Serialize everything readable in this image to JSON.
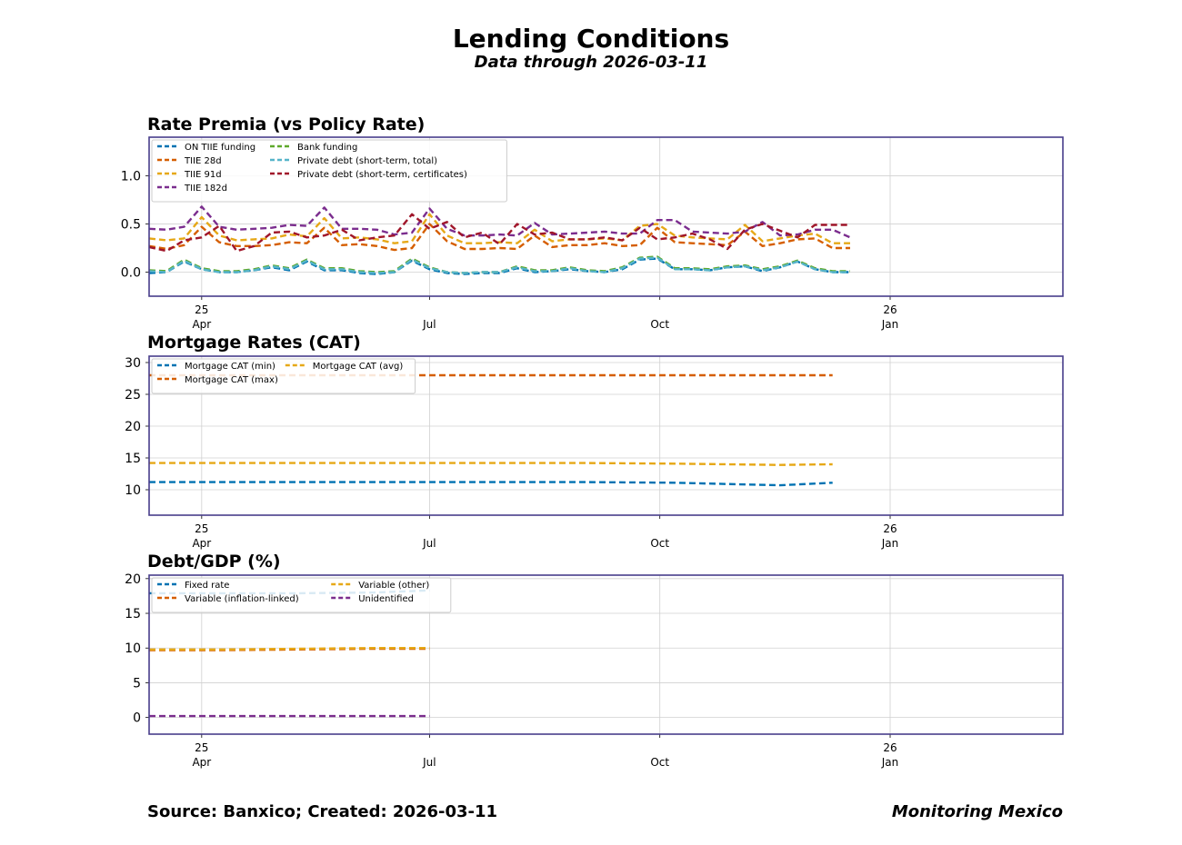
{
  "header": {
    "title": "Lending Conditions",
    "subtitle": "Data through 2026-03-11"
  },
  "footer": {
    "source": "Source: Banxico; Created: 2026-03-11",
    "brand": "Monitoring Mexico"
  },
  "colors": {
    "frame": "#483d8b",
    "grid": "#d0d0d0"
  },
  "x_ticks": [
    {
      "date": "2025-04-01",
      "line1": "25",
      "line2": "Apr"
    },
    {
      "date": "2025-07-01",
      "line1": "",
      "line2": "Jul"
    },
    {
      "date": "2025-10-01",
      "line1": "",
      "line2": "Oct"
    },
    {
      "date": "2026-01-01",
      "line1": "26",
      "line2": "Jan"
    }
  ],
  "x_range": [
    "2025-03-11",
    "2026-03-11"
  ],
  "chart_data": [
    {
      "type": "line",
      "title": "Rate Premia (vs Policy Rate)",
      "ylim": [
        -0.25,
        1.4
      ],
      "yticks": [
        0.0,
        0.5,
        1.0
      ],
      "ytick_labels": [
        "0.0",
        "0.5",
        "1.0"
      ],
      "grid": true,
      "legend": "top-left",
      "legend_columns": 2,
      "x": [
        "2025-03-11",
        "2025-03-18",
        "2025-03-25",
        "2025-04-01",
        "2025-04-08",
        "2025-04-15",
        "2025-04-22",
        "2025-04-29",
        "2025-05-06",
        "2025-05-13",
        "2025-05-20",
        "2025-05-27",
        "2025-06-03",
        "2025-06-10",
        "2025-06-17",
        "2025-06-24",
        "2025-07-01",
        "2025-07-08",
        "2025-07-15",
        "2025-07-22",
        "2025-07-29",
        "2025-08-05",
        "2025-08-12",
        "2025-08-19",
        "2025-08-26",
        "2025-09-02",
        "2025-09-09",
        "2025-09-16",
        "2025-09-23",
        "2025-09-30",
        "2025-10-07",
        "2025-10-14",
        "2025-10-21",
        "2025-10-28",
        "2025-11-04",
        "2025-11-11",
        "2025-11-18",
        "2025-11-25",
        "2025-12-02",
        "2025-12-09",
        "2025-12-16"
      ],
      "series": [
        {
          "name": "ON TIIE funding",
          "color": "#0072b2",
          "values": [
            -0.01,
            0.0,
            0.11,
            0.03,
            0.0,
            0.0,
            0.02,
            0.05,
            0.02,
            0.11,
            0.02,
            0.02,
            -0.01,
            -0.02,
            0.0,
            0.12,
            0.03,
            -0.01,
            -0.02,
            -0.01,
            -0.01,
            0.04,
            0.0,
            0.01,
            0.03,
            0.01,
            0.0,
            0.03,
            0.13,
            0.14,
            0.03,
            0.03,
            0.02,
            0.05,
            0.06,
            0.01,
            0.05,
            0.11,
            0.03,
            0.0,
            0.0
          ]
        },
        {
          "name": "TIIE 28d",
          "color": "#d55e00",
          "values": [
            0.27,
            0.24,
            0.28,
            0.47,
            0.31,
            0.27,
            0.27,
            0.28,
            0.31,
            0.3,
            0.46,
            0.28,
            0.29,
            0.27,
            0.23,
            0.25,
            0.5,
            0.32,
            0.24,
            0.24,
            0.25,
            0.24,
            0.38,
            0.26,
            0.28,
            0.28,
            0.3,
            0.27,
            0.28,
            0.46,
            0.31,
            0.3,
            0.29,
            0.28,
            0.42,
            0.27,
            0.3,
            0.34,
            0.35,
            0.25,
            0.25
          ]
        },
        {
          "name": "TIIE 91d",
          "color": "#e6a817",
          "values": [
            0.35,
            0.33,
            0.35,
            0.57,
            0.38,
            0.33,
            0.34,
            0.35,
            0.39,
            0.37,
            0.56,
            0.35,
            0.36,
            0.34,
            0.3,
            0.32,
            0.6,
            0.38,
            0.3,
            0.3,
            0.31,
            0.3,
            0.44,
            0.32,
            0.34,
            0.34,
            0.35,
            0.33,
            0.48,
            0.5,
            0.38,
            0.36,
            0.35,
            0.34,
            0.49,
            0.32,
            0.35,
            0.38,
            0.4,
            0.3,
            0.3
          ]
        },
        {
          "name": "TIIE 182d",
          "color": "#7b2d8e",
          "values": [
            0.45,
            0.44,
            0.47,
            0.68,
            0.47,
            0.44,
            0.45,
            0.46,
            0.49,
            0.48,
            0.67,
            0.45,
            0.45,
            0.44,
            0.39,
            0.41,
            0.66,
            0.45,
            0.38,
            0.38,
            0.39,
            0.38,
            0.51,
            0.39,
            0.4,
            0.41,
            0.42,
            0.4,
            0.4,
            0.54,
            0.54,
            0.42,
            0.41,
            0.4,
            0.42,
            0.52,
            0.38,
            0.39,
            0.44,
            0.44,
            0.36
          ]
        },
        {
          "name": "Bank funding",
          "color": "#5ea82b",
          "values": [
            0.02,
            0.01,
            0.13,
            0.04,
            0.01,
            0.01,
            0.03,
            0.07,
            0.04,
            0.13,
            0.04,
            0.04,
            0.01,
            0.0,
            0.01,
            0.14,
            0.05,
            0.0,
            -0.01,
            0.0,
            0.0,
            0.06,
            0.02,
            0.02,
            0.05,
            0.02,
            0.01,
            0.05,
            0.15,
            0.16,
            0.04,
            0.04,
            0.03,
            0.06,
            0.07,
            0.03,
            0.06,
            0.12,
            0.04,
            0.01,
            0.01
          ]
        },
        {
          "name": "Private debt (short-term, total)",
          "color": "#56b4c9",
          "values": [
            0.01,
            0.0,
            0.12,
            0.03,
            0.0,
            0.0,
            0.02,
            0.06,
            0.03,
            0.12,
            0.03,
            0.03,
            0.0,
            -0.01,
            0.0,
            0.13,
            0.04,
            0.0,
            -0.01,
            0.0,
            0.0,
            0.05,
            0.01,
            0.01,
            0.04,
            0.01,
            0.0,
            0.04,
            0.14,
            0.15,
            0.03,
            0.03,
            0.02,
            0.05,
            0.06,
            0.02,
            0.05,
            0.11,
            0.03,
            0.0,
            0.0
          ]
        },
        {
          "name": "Private debt (short-term, certificates)",
          "color": "#a0162a",
          "values": [
            0.26,
            0.22,
            0.33,
            0.36,
            0.48,
            0.22,
            0.27,
            0.41,
            0.42,
            0.36,
            0.38,
            0.44,
            0.33,
            0.36,
            0.38,
            0.6,
            0.45,
            0.52,
            0.36,
            0.41,
            0.29,
            0.5,
            0.39,
            0.41,
            0.34,
            0.34,
            0.36,
            0.33,
            0.46,
            0.34,
            0.36,
            0.4,
            0.34,
            0.24,
            0.44,
            0.5,
            0.43,
            0.36,
            0.49,
            0.49,
            0.49
          ]
        }
      ]
    },
    {
      "type": "line",
      "title": "Mortgage Rates (CAT)",
      "ylim": [
        6,
        31
      ],
      "yticks": [
        10,
        15,
        20,
        25,
        30
      ],
      "ytick_labels": [
        "10",
        "15",
        "20",
        "25",
        "30"
      ],
      "grid": true,
      "legend": "top-left",
      "legend_columns": 2,
      "x": [
        "2025-03-11",
        "2025-04-15",
        "2025-05-20",
        "2025-06-24",
        "2025-07-29",
        "2025-09-02",
        "2025-10-07",
        "2025-10-28",
        "2025-11-18",
        "2025-12-09"
      ],
      "series": [
        {
          "name": "Mortgage CAT (min)",
          "color": "#0072b2",
          "values": [
            11.2,
            11.2,
            11.2,
            11.2,
            11.2,
            11.2,
            11.1,
            10.9,
            10.7,
            11.1
          ]
        },
        {
          "name": "Mortgage CAT (max)",
          "color": "#d55e00",
          "values": [
            28.0,
            28.0,
            28.0,
            28.0,
            28.0,
            28.0,
            28.0,
            28.0,
            28.0,
            28.0
          ]
        },
        {
          "name": "Mortgage CAT (avg)",
          "color": "#e6a817",
          "values": [
            14.2,
            14.2,
            14.2,
            14.2,
            14.2,
            14.2,
            14.1,
            14.0,
            13.9,
            14.0
          ]
        }
      ]
    },
    {
      "type": "line",
      "title": "Debt/GDP (%)",
      "ylim": [
        -2.4,
        20.5
      ],
      "yticks": [
        0,
        5,
        10,
        15,
        20
      ],
      "ytick_labels": [
        "0",
        "5",
        "10",
        "15",
        "20"
      ],
      "grid": true,
      "legend": "top-left",
      "legend_columns": 2,
      "x": [
        "2025-03-11",
        "2025-04-10",
        "2025-05-10",
        "2025-06-09",
        "2025-07-01"
      ],
      "series": [
        {
          "name": "Fixed rate",
          "color": "#0072b2",
          "values": [
            17.9,
            17.9,
            17.9,
            18.0,
            18.3
          ]
        },
        {
          "name": "Variable (inflation-linked)",
          "color": "#d55e00",
          "values": [
            9.7,
            9.7,
            9.8,
            9.9,
            9.9
          ]
        },
        {
          "name": "Variable (other)",
          "color": "#e6a817",
          "values": [
            9.8,
            9.8,
            9.9,
            10.0,
            10.0
          ]
        },
        {
          "name": "Unidentified",
          "color": "#7b2d8e",
          "values": [
            0.2,
            0.2,
            0.2,
            0.2,
            0.2
          ]
        }
      ]
    }
  ]
}
